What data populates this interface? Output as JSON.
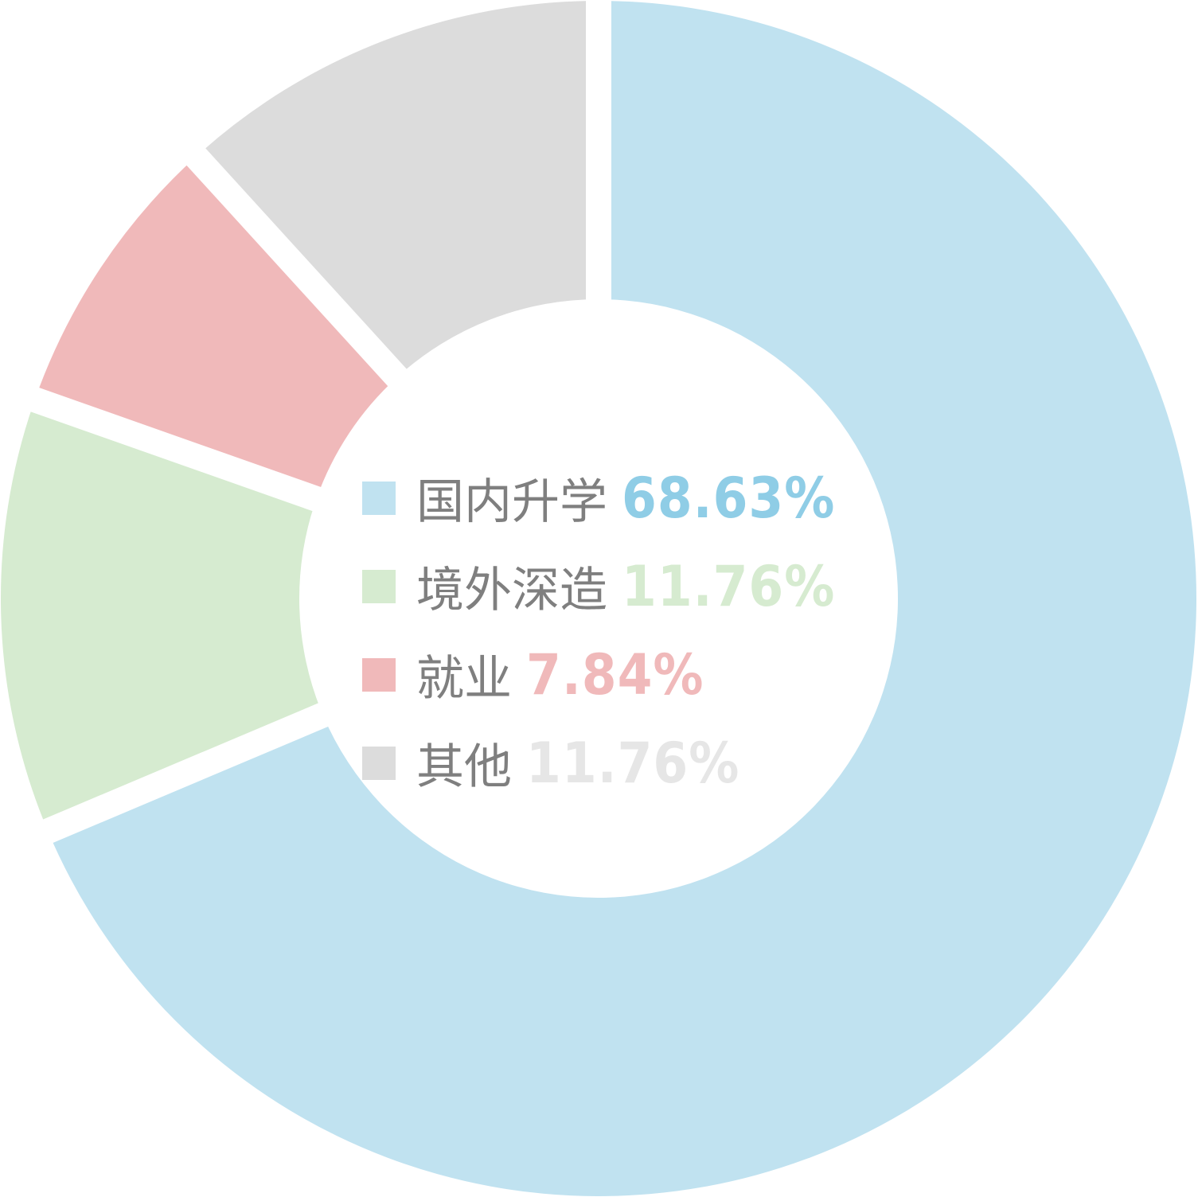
{
  "chart_data": {
    "type": "pie",
    "style": "donut",
    "start": "top, clockwise",
    "legend_position": "center",
    "slices": [
      {
        "label": "国内升学",
        "value": 68.63,
        "value_label": "68.63%",
        "color": "#c0e2f0",
        "text_color": "#8fcde6"
      },
      {
        "label": "境外深造",
        "value": 11.76,
        "value_label": "11.76%",
        "color": "#d6ebd0",
        "text_color": "#d6ebd0"
      },
      {
        "label": "就业",
        "value": 7.84,
        "value_label": "7.84%",
        "color": "#f0b9ba",
        "text_color": "#f0b9ba"
      },
      {
        "label": "其他",
        "value": 11.76,
        "value_label": "11.76%",
        "color": "#dcdcdc",
        "text_color": "#e6e6e6"
      }
    ]
  }
}
